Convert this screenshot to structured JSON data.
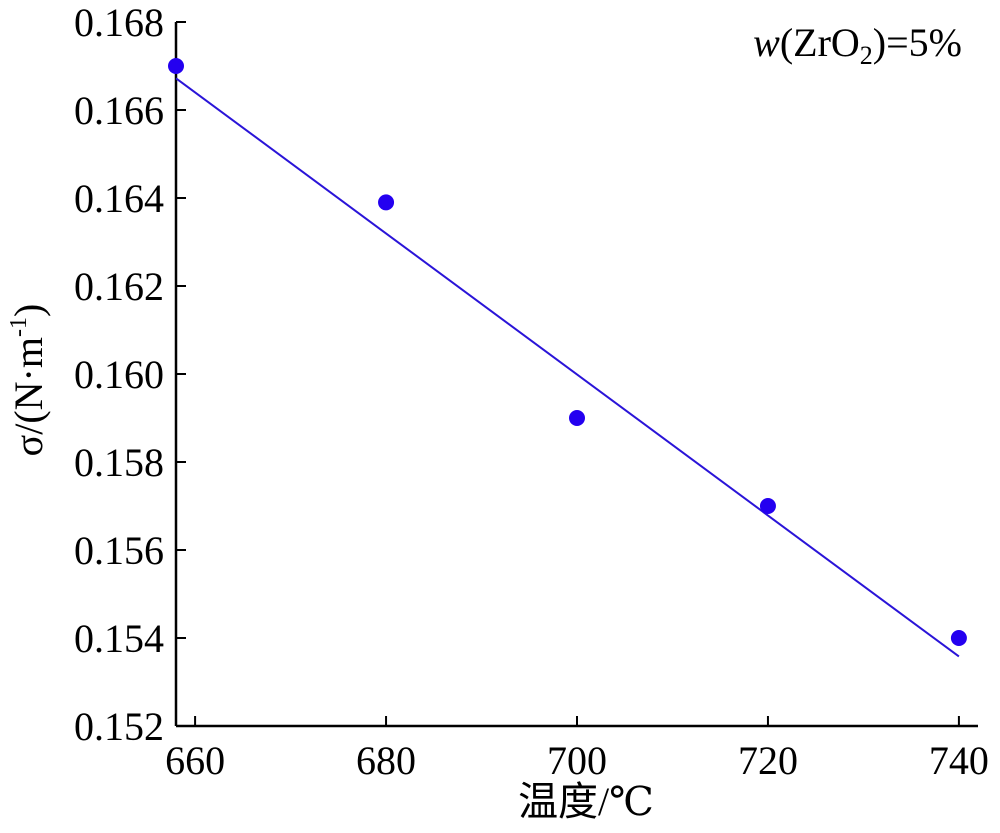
{
  "chart_data": {
    "type": "scatter",
    "title": "",
    "annotation": {
      "var": "w",
      "open": "(ZrO",
      "sub": "2",
      "close": ")=5%"
    },
    "xlabel": "温度/℃",
    "ylabel": {
      "main": "σ/(N·m",
      "sup": "-1",
      "close": ")"
    },
    "xlim": [
      658,
      742
    ],
    "ylim": [
      0.152,
      0.168
    ],
    "xticks": [
      660,
      680,
      700,
      720,
      740
    ],
    "yticks": [
      "0.152",
      "0.154",
      "0.156",
      "0.158",
      "0.160",
      "0.162",
      "0.164",
      "0.166",
      "0.168"
    ],
    "grid": false,
    "series": [
      {
        "points": [
          {
            "x": 658,
            "y": 0.167
          },
          {
            "x": 680,
            "y": 0.1639
          },
          {
            "x": 700,
            "y": 0.159
          },
          {
            "x": 720,
            "y": 0.157
          },
          {
            "x": 740,
            "y": 0.154
          }
        ],
        "fit": {
          "x": [
            658,
            740
          ],
          "y": [
            0.16672,
            0.15358
          ]
        }
      }
    ],
    "colors": {
      "marker": "#2400f0",
      "line": "#2a14d8",
      "axis": "#000000"
    }
  }
}
